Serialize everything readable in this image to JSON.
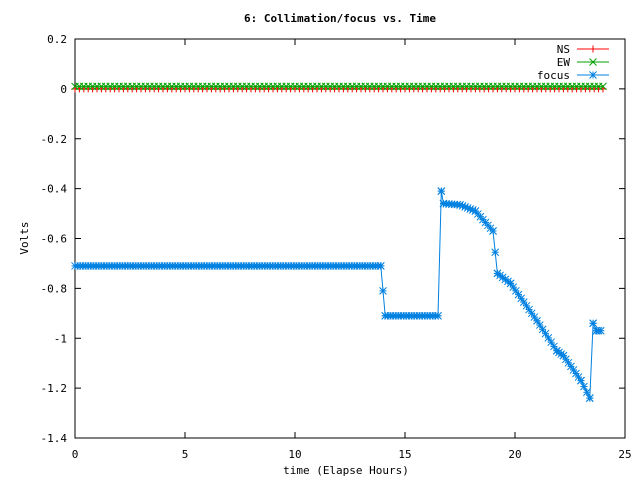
{
  "chart_data": {
    "type": "line",
    "title": "6: Collimation/focus vs. Time",
    "xlabel": "time (Elapse Hours)",
    "ylabel": "Volts",
    "xlim": [
      0,
      25
    ],
    "ylim": [
      -1.4,
      0.2
    ],
    "x_ticks": [
      0,
      5,
      10,
      15,
      20,
      25
    ],
    "x_tick_labels": [
      "0",
      "5",
      "10",
      "15",
      "20",
      "25"
    ],
    "y_ticks": [
      0.2,
      0,
      -0.2,
      -0.4,
      -0.6,
      -0.8,
      -1,
      -1.2,
      -1.4
    ],
    "y_tick_labels": [
      "0.2",
      "0",
      "-0.2",
      "-0.4",
      "-0.6",
      "-0.8",
      "-1",
      "-1.2",
      "-1.4"
    ],
    "grid": false,
    "legend_position": "top-right",
    "series": [
      {
        "name": "NS",
        "color": "#ff0000",
        "marker": "plus",
        "step": 0.2,
        "segments": [
          {
            "x0": 0.0,
            "x1": 24.0,
            "y0": 0.0,
            "y1": 0.0
          }
        ]
      },
      {
        "name": "EW",
        "color": "#00a000",
        "marker": "cross",
        "step": 0.2,
        "segments": [
          {
            "x0": 0.0,
            "x1": 24.0,
            "y0": 0.01,
            "y1": 0.01
          }
        ]
      },
      {
        "name": "focus",
        "color": "#0080e0",
        "marker": "star",
        "step": 0.12,
        "segments": [
          {
            "x0": 0.0,
            "x1": 13.9,
            "y0": -0.71,
            "y1": -0.71
          },
          {
            "x0": 13.9,
            "x1": 14.1,
            "y0": -0.71,
            "y1": -0.91
          },
          {
            "x0": 14.1,
            "x1": 16.5,
            "y0": -0.91,
            "y1": -0.91
          },
          {
            "x0": 16.5,
            "x1": 16.65,
            "y0": -0.91,
            "y1": -0.41
          },
          {
            "x0": 16.65,
            "x1": 16.75,
            "y0": -0.41,
            "y1": -0.46
          },
          {
            "x0": 16.75,
            "x1": 17.5,
            "y0": -0.46,
            "y1": -0.465
          },
          {
            "x0": 17.5,
            "x1": 18.2,
            "y0": -0.465,
            "y1": -0.49
          },
          {
            "x0": 18.2,
            "x1": 19.0,
            "y0": -0.49,
            "y1": -0.57
          },
          {
            "x0": 19.0,
            "x1": 19.2,
            "y0": -0.57,
            "y1": -0.74
          },
          {
            "x0": 19.2,
            "x1": 19.8,
            "y0": -0.74,
            "y1": -0.78
          },
          {
            "x0": 19.8,
            "x1": 21.0,
            "y0": -0.78,
            "y1": -0.93
          },
          {
            "x0": 21.0,
            "x1": 21.9,
            "y0": -0.93,
            "y1": -1.05
          },
          {
            "x0": 21.9,
            "x1": 22.2,
            "y0": -1.05,
            "y1": -1.07
          },
          {
            "x0": 22.2,
            "x1": 23.0,
            "y0": -1.07,
            "y1": -1.17
          },
          {
            "x0": 23.0,
            "x1": 23.4,
            "y0": -1.17,
            "y1": -1.24
          },
          {
            "x0": 23.4,
            "x1": 23.55,
            "y0": -1.24,
            "y1": -0.94
          },
          {
            "x0": 23.55,
            "x1": 23.7,
            "y0": -0.94,
            "y1": -0.97
          },
          {
            "x0": 23.7,
            "x1": 23.9,
            "y0": -0.97,
            "y1": -0.97
          }
        ]
      }
    ]
  }
}
